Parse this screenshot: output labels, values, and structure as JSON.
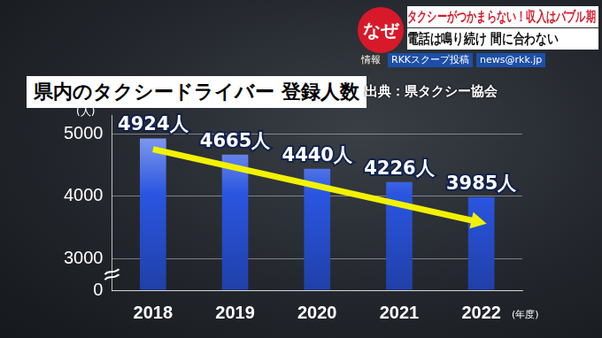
{
  "chart_data": {
    "type": "bar",
    "title": "県内のタクシードライバー 登録人数",
    "annotations": [
      "出典：県タクシー協会"
    ],
    "y_label": "(人)",
    "x_label": "(年度)",
    "categories": [
      "2018",
      "2019",
      "2020",
      "2021",
      "2022"
    ],
    "values": [
      4924,
      4665,
      4440,
      4226,
      3985
    ],
    "value_labels": [
      "4924人",
      "4665人",
      "4440人",
      "4226人",
      "3985人"
    ],
    "data_labels": true,
    "color": "#2a55e0",
    "ylim": [
      0,
      5300
    ],
    "yticks": [
      0,
      3000,
      4000,
      5000
    ],
    "grid": true
  },
  "overlay": {
    "badge": "なぜ",
    "headline": [
      "タクシーがつかまらない！収入はバブル期",
      "電話は鳴り続け 間に合わない"
    ],
    "info": [
      "情報",
      "RKKスクープ投稿",
      "news@rkk.jp"
    ]
  }
}
